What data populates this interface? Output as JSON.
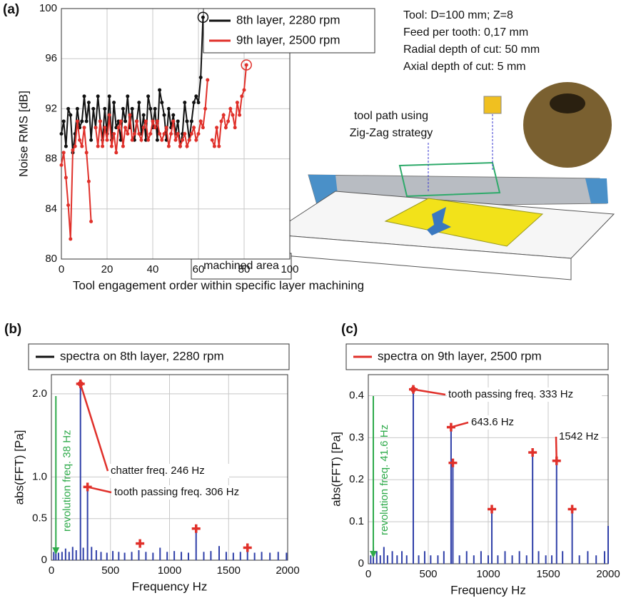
{
  "chart_data": [
    {
      "type": "line",
      "panel_label": "(a)",
      "ylabel": "Noise RMS [dB]",
      "xlabel": "Tool engagement order within specific layer machining",
      "x": [
        0,
        1,
        2,
        3,
        4,
        5,
        6,
        7,
        8,
        9,
        10,
        11,
        12,
        13,
        14,
        15,
        16,
        17,
        18,
        19,
        20,
        21,
        22,
        23,
        24,
        25,
        26,
        27,
        28,
        29,
        30,
        31,
        32,
        33,
        34,
        35,
        36,
        37,
        38,
        39,
        40,
        41,
        42,
        43,
        44,
        45,
        46,
        47,
        48,
        49,
        50,
        51,
        52,
        53,
        54,
        55,
        56,
        57,
        58,
        59,
        60,
        61,
        62,
        63,
        64,
        65,
        66,
        67,
        68,
        69,
        70,
        71,
        72,
        73,
        74,
        75,
        76,
        77,
        78,
        79,
        80,
        81
      ],
      "xlim": [
        0,
        100
      ],
      "xticks": [
        0,
        20,
        40,
        60,
        80,
        100
      ],
      "ylim": [
        80,
        100
      ],
      "yticks": [
        80,
        84,
        88,
        92,
        96,
        100
      ],
      "grid": true,
      "series": [
        {
          "name": "8th layer, 2280 rpm",
          "color": "#111111",
          "values": [
            90,
            91,
            89,
            92,
            91.5,
            88.5,
            90,
            92,
            90.5,
            91,
            93,
            91,
            92.5,
            89.5,
            92,
            90.5,
            93,
            91,
            89.5,
            92,
            90,
            93,
            89.5,
            92.5,
            90.5,
            91,
            89.5,
            92,
            91,
            93,
            90.5,
            92,
            89.5,
            91,
            92.5,
            90,
            91.5,
            89.5,
            93,
            92,
            90.5,
            92,
            89.5,
            93.5,
            92.5,
            91.5,
            89.5,
            92,
            90.5,
            91.5,
            90,
            91,
            89,
            90,
            92.5,
            91,
            89.5,
            91,
            92.5,
            93,
            92.5,
            94.5,
            99.3,
            null,
            null,
            null,
            null,
            null,
            null,
            null,
            null,
            null,
            null,
            null,
            null,
            null,
            null,
            null,
            null,
            null,
            null,
            null
          ]
        },
        {
          "name": "9th layer, 2500 rpm",
          "color": "#e0302a",
          "values": [
            87.5,
            88.5,
            86.5,
            84.3,
            81.6,
            88.7,
            89,
            91,
            89.5,
            89,
            90.5,
            88.5,
            86.2,
            83,
            null,
            90.5,
            89,
            91,
            89,
            90.5,
            89.5,
            91.5,
            89,
            90,
            88.5,
            90.5,
            91,
            89,
            90.5,
            90,
            91.5,
            89.5,
            90,
            91,
            90,
            89.5,
            90.5,
            91,
            89.5,
            90,
            91,
            90.5,
            91,
            90,
            89.5,
            90,
            90.5,
            89,
            90,
            91,
            89.5,
            90,
            89,
            89.5,
            90,
            89,
            89.5,
            90,
            90.5,
            89.5,
            90,
            91,
            90.5,
            92,
            94.3,
            null,
            89.5,
            89,
            90.5,
            89,
            91,
            91.5,
            90.5,
            91,
            92,
            91.5,
            90.5,
            92.5,
            91.5,
            93,
            93.5,
            95.5
          ]
        }
      ],
      "annotations": [
        "Tool: D=100 mm; Z=8",
        "Feed per tooth: 0,17 mm",
        "Radial depth of cut: 50 mm",
        "Axial depth of cut: 5 mm"
      ],
      "illustration_labels": [
        "tool path using",
        "Zig-Zag strategy",
        "machined area"
      ]
    },
    {
      "type": "spectrum",
      "panel_label": "(b)",
      "ylabel": "abs(FFT) [Pa]",
      "xlabel": "Frequency Hz",
      "xlim": [
        0,
        2000
      ],
      "xticks": [
        0,
        500,
        1000,
        1500,
        2000
      ],
      "ylim": [
        0,
        2.23
      ],
      "yticks": [
        0,
        0.5,
        {
          "value": 1,
          "label": "1.0"
        },
        {
          "value": 2,
          "label": "2.0"
        }
      ],
      "grid": true,
      "series": [
        {
          "name": "spectra on 8th layer, 2280 rpm",
          "color": "#2f3fa8",
          "legend_color": "#111111",
          "x": [
            20,
            38,
            60,
            90,
            120,
            150,
            180,
            210,
            246,
            270,
            306,
            340,
            380,
            420,
            470,
            520,
            570,
            620,
            680,
            740,
            800,
            860,
            920,
            980,
            1040,
            1100,
            1160,
            1225,
            1290,
            1350,
            1420,
            1480,
            1540,
            1600,
            1660,
            1720,
            1780,
            1850,
            1920,
            1990
          ],
          "values": [
            0.1,
            0.12,
            0.09,
            0.1,
            0.14,
            0.1,
            0.16,
            0.12,
            2.12,
            0.15,
            0.88,
            0.16,
            0.12,
            0.1,
            0.09,
            0.11,
            0.1,
            0.09,
            0.1,
            0.12,
            0.1,
            0.09,
            0.15,
            0.1,
            0.11,
            0.1,
            0.09,
            0.38,
            0.1,
            0.11,
            0.17,
            0.1,
            0.09,
            0.1,
            0.14,
            0.09,
            0.1,
            0.09,
            0.1,
            0.09
          ]
        }
      ],
      "markers": {
        "color": "#e0302a",
        "x": [
          246,
          306,
          750,
          1225,
          1660
        ],
        "values": [
          2.12,
          0.88,
          0.2,
          0.38,
          0.15
        ]
      },
      "annotations": [
        "chatter freq. 246 Hz",
        "tooth passing freq. 306 Hz"
      ],
      "revolution": {
        "x": 38,
        "label": "revolution freq. 38 Hz",
        "color": "#2eaa4a"
      }
    },
    {
      "type": "spectrum",
      "panel_label": "(c)",
      "ylabel": "abs(FFT) [Pa]",
      "xlabel": "Frequency Hz",
      "xlim": [
        0,
        2000
      ],
      "xticks": [
        0,
        500,
        1000,
        1500,
        2000
      ],
      "ylim": [
        0,
        0.45
      ],
      "yticks": [
        0,
        0.1,
        0.2,
        0.3,
        0.4
      ],
      "grid": true,
      "series": [
        {
          "name": "spectra on 9th layer, 2500 rpm",
          "color": "#2f3fa8",
          "legend_color": "#e0302a",
          "x": [
            20,
            42,
            70,
            100,
            130,
            160,
            200,
            240,
            280,
            320,
            375,
            420,
            470,
            520,
            580,
            630,
            690,
            705,
            760,
            820,
            880,
            940,
            1000,
            1030,
            1080,
            1140,
            1200,
            1260,
            1320,
            1370,
            1420,
            1480,
            1530,
            1570,
            1620,
            1700,
            1760,
            1830,
            1900,
            1970,
            2000
          ],
          "values": [
            0.02,
            0.04,
            0.03,
            0.02,
            0.04,
            0.02,
            0.03,
            0.02,
            0.03,
            0.02,
            0.415,
            0.02,
            0.03,
            0.02,
            0.02,
            0.03,
            0.325,
            0.24,
            0.02,
            0.03,
            0.02,
            0.03,
            0.02,
            0.13,
            0.02,
            0.03,
            0.02,
            0.03,
            0.02,
            0.265,
            0.03,
            0.02,
            0.02,
            0.245,
            0.03,
            0.13,
            0.02,
            0.03,
            0.02,
            0.03,
            0.09
          ]
        }
      ],
      "markers": {
        "color": "#e0302a",
        "x": [
          375,
          690,
          705,
          1030,
          1370,
          1570,
          1700
        ],
        "values": [
          0.415,
          0.325,
          0.24,
          0.13,
          0.265,
          0.245,
          0.13
        ]
      },
      "annotations": [
        "tooth passing freq. 333 Hz",
        "643.6 Hz",
        "1542 Hz"
      ],
      "revolution": {
        "x": 41.6,
        "label": "revolution freq. 41.6 Hz",
        "color": "#2eaa4a"
      }
    }
  ]
}
